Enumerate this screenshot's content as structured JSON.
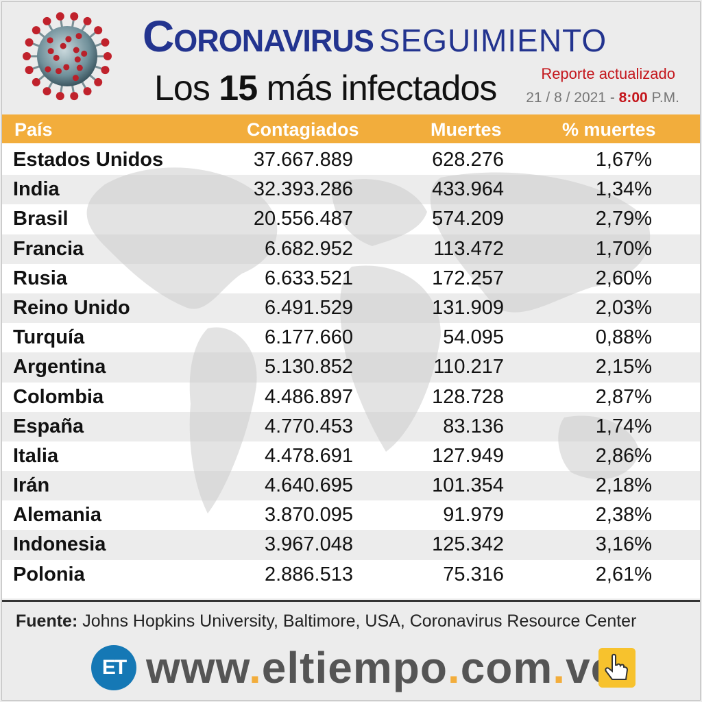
{
  "header": {
    "title_bold": "Coronavirus",
    "title_light": "SEGUIMIENTO",
    "subtitle_prefix": "Los",
    "subtitle_number": "15",
    "subtitle_suffix": "más infectados",
    "report_label": "Reporte actualizado",
    "report_date": "21 / 8 / 2021 -",
    "report_time": "8:00",
    "report_ampm": "P.M."
  },
  "table": {
    "headers": [
      "País",
      "Contagiados",
      "Muertes",
      "% muertes"
    ],
    "rows": [
      [
        "Estados Unidos",
        "37.667.889",
        "628.276",
        "1,67%"
      ],
      [
        "India",
        "32.393.286",
        "433.964",
        "1,34%"
      ],
      [
        "Brasil",
        "20.556.487",
        "574.209",
        "2,79%"
      ],
      [
        "Francia",
        "6.682.952",
        "113.472",
        "1,70%"
      ],
      [
        "Rusia",
        "6.633.521",
        "172.257",
        "2,60%"
      ],
      [
        "Reino Unido",
        "6.491.529",
        "131.909",
        "2,03%"
      ],
      [
        "Turquía",
        "6.177.660",
        "54.095",
        "0,88%"
      ],
      [
        "Argentina",
        "5.130.852",
        "110.217",
        "2,15%"
      ],
      [
        "Colombia",
        "4.486.897",
        "128.728",
        "2,87%"
      ],
      [
        "España",
        "4.770.453",
        "83.136",
        "1,74%"
      ],
      [
        "Italia",
        "4.478.691",
        "127.949",
        "2,86%"
      ],
      [
        "Irán",
        "4.640.695",
        "101.354",
        "2,18%"
      ],
      [
        "Alemania",
        "3.870.095",
        "91.979",
        "2,38%"
      ],
      [
        "Indonesia",
        "3.967.048",
        "125.342",
        "3,16%"
      ],
      [
        "Polonia",
        "2.886.513",
        "75.316",
        "2,61%"
      ]
    ]
  },
  "footer": {
    "source_label": "Fuente:",
    "source_text": "Johns Hopkins University, Baltimore, USA, Coronavirus Resource Center",
    "logo_text": "ET",
    "url_parts": [
      "www",
      ".",
      "eltiempo",
      ".",
      "com",
      ".",
      "ve"
    ]
  },
  "colors": {
    "title_blue": "#23348f",
    "header_orange": "#f2ad3c",
    "accent_red": "#c4161c",
    "logo_blue": "#1578b5"
  },
  "icons": [
    "coronavirus-icon",
    "world-map-background",
    "et-logo",
    "pointing-hand-icon"
  ]
}
